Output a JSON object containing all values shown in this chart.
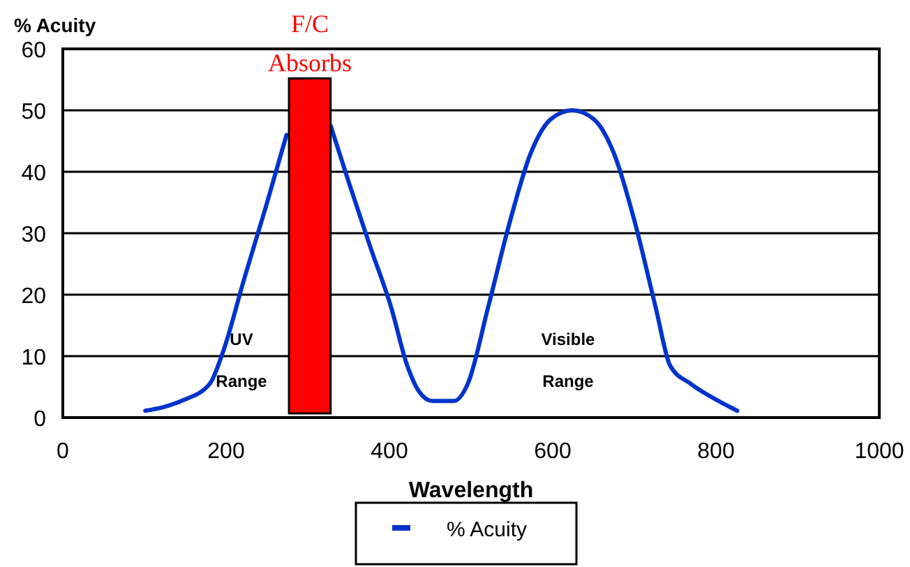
{
  "chart_data": {
    "type": "line",
    "xlabel": "Wavelength",
    "ylabel": "% Acuity",
    "x": [
      101,
      145,
      180,
      197,
      222,
      248,
      274,
      285,
      290,
      328,
      350,
      376,
      402,
      422,
      436,
      453,
      479,
      496,
      521,
      547,
      573,
      598,
      624,
      650,
      675,
      701,
      726,
      744,
      769,
      803,
      826
    ],
    "series": [
      {
        "name": "% Acuity",
        "color": "#0033cc",
        "values": [
          1.1,
          2.7,
          5.5,
          11,
          22.5,
          34,
          46,
          null,
          null,
          47.5,
          38.4,
          28,
          18,
          8.4,
          4.3,
          2.7,
          2.7,
          5.5,
          18,
          31.6,
          43,
          48.6,
          50,
          48.6,
          43,
          31.6,
          18,
          8.4,
          5.5,
          2.7,
          1.1
        ]
      }
    ],
    "xlim": [
      0,
      1000
    ],
    "xticks": [
      0,
      200,
      400,
      600,
      800,
      1000
    ],
    "ylim": [
      0,
      60
    ],
    "yticks": [
      0,
      10,
      20,
      30,
      40,
      50,
      60
    ],
    "grid": "y",
    "legend": "bottom",
    "marker": "none",
    "line_style": "solid",
    "bands": [
      {
        "axis": "x",
        "from": 277,
        "to": 328,
        "label": "F/C Absorbs",
        "color": "#ff0000"
      }
    ],
    "annotations": [
      "UV",
      "Range",
      "Visible",
      "Range"
    ]
  }
}
